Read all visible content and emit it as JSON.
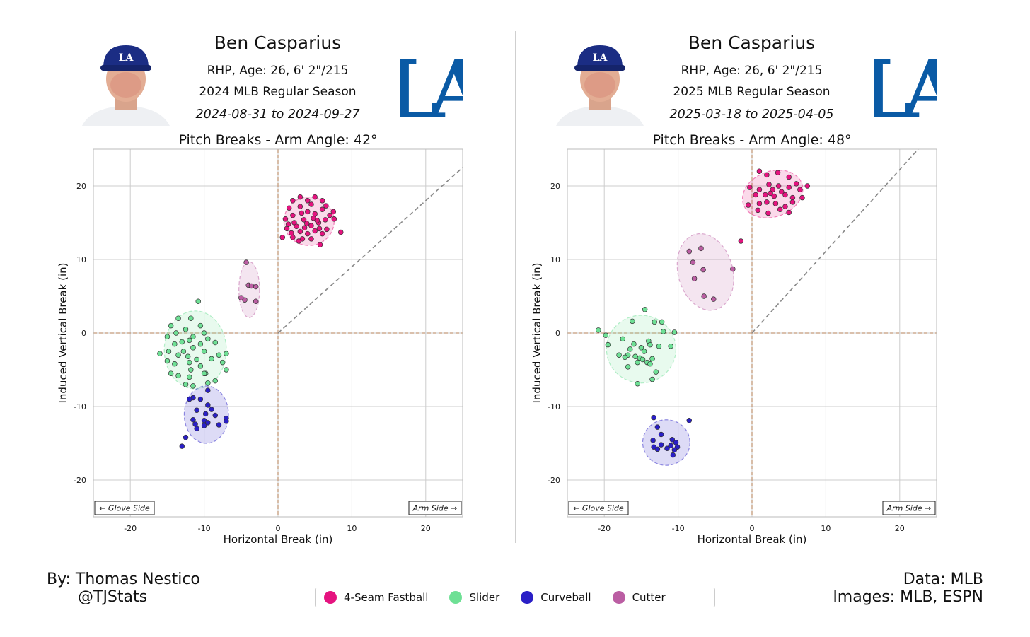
{
  "colors": {
    "fastball": "#e5137f",
    "slider": "#6ee095",
    "curveball": "#2a1fc6",
    "cutter": "#bb5ea3",
    "zero_line": "#c49a7a",
    "arm_line": "#888888",
    "grid": "#cccccc",
    "logo_blue": "#0a5aa5",
    "cap_blue": "#1b2d84"
  },
  "legend": [
    {
      "label": "4-Seam Fastball",
      "color": "#e5137f"
    },
    {
      "label": "Slider",
      "color": "#6ee095"
    },
    {
      "label": "Curveball",
      "color": "#2a1fc6"
    },
    {
      "label": "Cutter",
      "color": "#bb5ea3"
    }
  ],
  "credits": {
    "by": "By: Thomas Nestico",
    "handle": "@TJStats",
    "data": "Data: MLB",
    "images": "Images: MLB, ESPN"
  },
  "panels": [
    {
      "player": "Ben Casparius",
      "bio": "RHP, Age: 26, 6' 2\"/215",
      "season": "2024 MLB Regular Season",
      "dates": "2024-08-31 to 2024-09-27",
      "logo_text": "LA",
      "cap_text": "LA",
      "plot_title": "Pitch Breaks - Arm Angle: 42°",
      "glove_label": "← Glove Side",
      "arm_label": "Arm Side →"
    },
    {
      "player": "Ben Casparius",
      "bio": "RHP, Age: 26, 6' 2\"/215",
      "season": "2025 MLB Regular Season",
      "dates": "2025-03-18 to 2025-04-05",
      "logo_text": "LA",
      "cap_text": "LA",
      "plot_title": "Pitch Breaks - Arm Angle: 48°",
      "glove_label": "← Glove Side",
      "arm_label": "Arm Side →"
    }
  ],
  "chart_data": [
    {
      "type": "scatter",
      "title": "Pitch Breaks - Arm Angle: 42°",
      "xlabel": "Horizontal Break (in)",
      "ylabel": "Induced Vertical Break (in)",
      "xlim": [
        -25,
        25
      ],
      "ylim": [
        -25,
        25
      ],
      "xticks": [
        -20,
        -10,
        0,
        10,
        20
      ],
      "yticks": [
        -20,
        -10,
        0,
        10,
        20
      ],
      "grid": true,
      "arm_angle_deg": 42,
      "series": [
        {
          "name": "4-Seam Fastball",
          "color": "#e5137f",
          "ellipse": {
            "cx": 4.2,
            "cy": 15.2,
            "rx": 3.4,
            "ry": 3.3,
            "angle": 0
          },
          "points": [
            [
              2,
              18
            ],
            [
              3,
              18.5
            ],
            [
              4,
              18
            ],
            [
              5,
              18.5
            ],
            [
              6,
              18
            ],
            [
              1.5,
              17
            ],
            [
              3,
              17.2
            ],
            [
              4.5,
              17.5
            ],
            [
              6.5,
              17.3
            ],
            [
              7.5,
              16.5
            ],
            [
              2,
              16
            ],
            [
              3.2,
              16.3
            ],
            [
              4,
              16.5
            ],
            [
              5,
              16.2
            ],
            [
              6,
              16.8
            ],
            [
              7,
              16
            ],
            [
              1,
              15.5
            ],
            [
              2.2,
              15
            ],
            [
              3.5,
              15.4
            ],
            [
              4.8,
              15.6
            ],
            [
              5.5,
              15
            ],
            [
              6.4,
              15.4
            ],
            [
              7.6,
              15.5
            ],
            [
              1.2,
              14.2
            ],
            [
              2.5,
              14.5
            ],
            [
              3.6,
              14.3
            ],
            [
              4.5,
              14.6
            ],
            [
              5.6,
              14.2
            ],
            [
              6.6,
              14.1
            ],
            [
              1.8,
              13.6
            ],
            [
              3,
              13.8
            ],
            [
              4,
              13.5
            ],
            [
              5,
              13.9
            ],
            [
              6,
              13.5
            ],
            [
              2,
              13
            ],
            [
              3.3,
              12.8
            ],
            [
              4.5,
              12.8
            ],
            [
              0.6,
              13
            ],
            [
              8.5,
              13.7
            ],
            [
              5.7,
              12
            ],
            [
              2.8,
              12.5
            ],
            [
              1.4,
              14.8
            ],
            [
              3.9,
              14.9
            ],
            [
              5.3,
              15.3
            ]
          ]
        },
        {
          "name": "Slider",
          "color": "#6ee095",
          "ellipse": {
            "cx": -11.2,
            "cy": -2.3,
            "rx": 4.2,
            "ry": 5.3,
            "angle": 0
          },
          "points": [
            [
              -10.8,
              4.3
            ],
            [
              -13.5,
              2
            ],
            [
              -11.8,
              2
            ],
            [
              -14.5,
              1
            ],
            [
              -10.5,
              1
            ],
            [
              -12.5,
              0.5
            ],
            [
              -10,
              0
            ],
            [
              -13.8,
              0
            ],
            [
              -15,
              -0.5
            ],
            [
              -11.5,
              -0.5
            ],
            [
              -9.5,
              -0.8
            ],
            [
              -12,
              -1
            ],
            [
              -13,
              -1.2
            ],
            [
              -14,
              -1.5
            ],
            [
              -10.5,
              -1.5
            ],
            [
              -8.5,
              -1.3
            ],
            [
              -11.5,
              -2
            ],
            [
              -12.8,
              -2.5
            ],
            [
              -14.8,
              -2.5
            ],
            [
              -16,
              -2.8
            ],
            [
              -10,
              -2.5
            ],
            [
              -8,
              -3
            ],
            [
              -7,
              -2.8
            ],
            [
              -9,
              -3.5
            ],
            [
              -13.5,
              -3
            ],
            [
              -11,
              -3.6
            ],
            [
              -12,
              -4
            ],
            [
              -14,
              -4.2
            ],
            [
              -7.5,
              -4
            ],
            [
              -10.5,
              -4.5
            ],
            [
              -9.8,
              -5.5
            ],
            [
              -11.8,
              -5
            ],
            [
              -13.5,
              -5.8
            ],
            [
              -10,
              -5.5
            ],
            [
              -7,
              -5
            ],
            [
              -12,
              -6
            ],
            [
              -14.5,
              -5.5
            ],
            [
              -9.5,
              -6.8
            ],
            [
              -11.5,
              -7.2
            ],
            [
              -12.5,
              -7.0
            ],
            [
              -8.5,
              -6.5
            ],
            [
              -15,
              -3.8
            ],
            [
              -12.2,
              -3.2
            ]
          ]
        },
        {
          "name": "Curveball",
          "color": "#2a1fc6",
          "ellipse": {
            "cx": -9.7,
            "cy": -11.1,
            "rx": 3,
            "ry": 3.9,
            "angle": 0
          },
          "points": [
            [
              -9.5,
              -7.8
            ],
            [
              -11.5,
              -8.8
            ],
            [
              -10.5,
              -9
            ],
            [
              -12,
              -9
            ],
            [
              -9.5,
              -9.8
            ],
            [
              -9,
              -10.4
            ],
            [
              -11,
              -10.5
            ],
            [
              -9.8,
              -11
            ],
            [
              -8.5,
              -11.2
            ],
            [
              -11.5,
              -11.8
            ],
            [
              -10,
              -11.9
            ],
            [
              -7,
              -11.6
            ],
            [
              -7,
              -12
            ],
            [
              -11.2,
              -12.4
            ],
            [
              -10,
              -12.6
            ],
            [
              -11,
              -13
            ],
            [
              -8,
              -12.5
            ],
            [
              -12.5,
              -14.2
            ],
            [
              -13,
              -15.4
            ],
            [
              -9.5,
              -12.2
            ]
          ]
        },
        {
          "name": "Cutter",
          "color": "#bb5ea3",
          "ellipse": {
            "cx": -3.9,
            "cy": 5.9,
            "rx": 1.4,
            "ry": 3.8,
            "angle": 0
          },
          "points": [
            [
              -4.3,
              9.6
            ],
            [
              -4,
              6.5
            ],
            [
              -3.6,
              6.4
            ],
            [
              -3,
              6.3
            ],
            [
              -4.5,
              4.5
            ],
            [
              -5,
              4.8
            ],
            [
              -3,
              4.3
            ]
          ]
        }
      ]
    },
    {
      "type": "scatter",
      "title": "Pitch Breaks - Arm Angle: 48°",
      "xlabel": "Horizontal Break (in)",
      "ylabel": "Induced Vertical Break (in)",
      "xlim": [
        -25,
        25
      ],
      "ylim": [
        -25,
        25
      ],
      "xticks": [
        -20,
        -10,
        0,
        10,
        20
      ],
      "yticks": [
        -20,
        -10,
        0,
        10,
        20
      ],
      "grid": true,
      "arm_angle_deg": 48,
      "series": [
        {
          "name": "4-Seam Fastball",
          "color": "#e5137f",
          "ellipse": {
            "cx": 2.8,
            "cy": 18.9,
            "rx": 4.2,
            "ry": 3.1,
            "angle": -20
          },
          "points": [
            [
              1,
              22
            ],
            [
              2,
              21.5
            ],
            [
              3.5,
              21.8
            ],
            [
              5,
              21.2
            ],
            [
              2.3,
              20.2
            ],
            [
              3.6,
              20
            ],
            [
              6,
              20.3
            ],
            [
              7.5,
              20
            ],
            [
              -0.3,
              19.8
            ],
            [
              1,
              19.5
            ],
            [
              2.8,
              19.5
            ],
            [
              4,
              19.2
            ],
            [
              5,
              19.8
            ],
            [
              6.5,
              19.5
            ],
            [
              0.5,
              18.8
            ],
            [
              1.8,
              18.8
            ],
            [
              3,
              18.6
            ],
            [
              4.5,
              18.8
            ],
            [
              5.5,
              18.4
            ],
            [
              6.8,
              18.4
            ],
            [
              -0.5,
              17.4
            ],
            [
              1,
              17.6
            ],
            [
              2,
              17.8
            ],
            [
              3.2,
              17.6
            ],
            [
              4.5,
              17.2
            ],
            [
              5.5,
              17.8
            ],
            [
              0.8,
              16.7
            ],
            [
              2.2,
              16.3
            ],
            [
              3.8,
              16.8
            ],
            [
              5,
              16.4
            ],
            [
              -1.5,
              12.5
            ],
            [
              2.5,
              19
            ]
          ]
        },
        {
          "name": "Slider",
          "color": "#6ee095",
          "ellipse": {
            "cx": -15,
            "cy": -2.2,
            "rx": 4.7,
            "ry": 4.6,
            "angle": 0
          },
          "points": [
            [
              -14.5,
              3.2
            ],
            [
              -20.8,
              0.4
            ],
            [
              -16.2,
              1.6
            ],
            [
              -13.2,
              1.5
            ],
            [
              -12.2,
              1.5
            ],
            [
              -12,
              0.2
            ],
            [
              -10.5,
              0.1
            ],
            [
              -19.8,
              -0.3
            ],
            [
              -17.5,
              -0.8
            ],
            [
              -14,
              -1.1
            ],
            [
              -19.5,
              -1.6
            ],
            [
              -16,
              -1.5
            ],
            [
              -13.8,
              -1.6
            ],
            [
              -12.6,
              -1.8
            ],
            [
              -11,
              -1.8
            ],
            [
              -15,
              -2
            ],
            [
              -16.5,
              -2.2
            ],
            [
              -14.6,
              -2.5
            ],
            [
              -18,
              -3
            ],
            [
              -16.8,
              -3.0
            ],
            [
              -15.8,
              -3.2
            ],
            [
              -15.2,
              -3.4
            ],
            [
              -14.8,
              -3.6
            ],
            [
              -17.2,
              -3.3
            ],
            [
              -13.5,
              -3.5
            ],
            [
              -14.2,
              -4
            ],
            [
              -15.5,
              -4.0
            ],
            [
              -13.8,
              -4.2
            ],
            [
              -16.8,
              -4.6
            ],
            [
              -13,
              -5.3
            ],
            [
              -13.5,
              -6.3
            ],
            [
              -15.5,
              -6.9
            ]
          ]
        },
        {
          "name": "Curveball",
          "color": "#2a1fc6",
          "ellipse": {
            "cx": -11.6,
            "cy": -14.9,
            "rx": 3.2,
            "ry": 3.1,
            "angle": 0
          },
          "points": [
            [
              -13.3,
              -11.5
            ],
            [
              -8.5,
              -11.9
            ],
            [
              -12.8,
              -12.8
            ],
            [
              -12.3,
              -13.8
            ],
            [
              -13.4,
              -14.6
            ],
            [
              -10.8,
              -14.5
            ],
            [
              -10.3,
              -14.9
            ],
            [
              -12.3,
              -15.2
            ],
            [
              -11,
              -15.3
            ],
            [
              -13.3,
              -15.5
            ],
            [
              -10.1,
              -15.5
            ],
            [
              -12.8,
              -15.8
            ],
            [
              -11.5,
              -15.7
            ],
            [
              -10.5,
              -15.9
            ],
            [
              -10.7,
              -16.6
            ]
          ]
        },
        {
          "name": "Cutter",
          "color": "#bb5ea3",
          "ellipse": {
            "cx": -6.3,
            "cy": 8.3,
            "rx": 3.7,
            "ry": 5.3,
            "angle": -15
          },
          "points": [
            [
              -8.5,
              11.1
            ],
            [
              -6.9,
              11.5
            ],
            [
              -8,
              9.6
            ],
            [
              -6.6,
              8.6
            ],
            [
              -2.6,
              8.7
            ],
            [
              -7.8,
              7.4
            ],
            [
              -6.5,
              5
            ],
            [
              -5.2,
              4.6
            ]
          ]
        }
      ]
    }
  ]
}
